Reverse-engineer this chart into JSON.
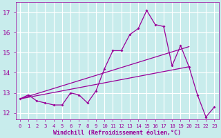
{
  "bg_color": "#c8ecec",
  "grid_color": "#ffffff",
  "line_color": "#990099",
  "xlabel": "Windchill (Refroidissement éolien,°C)",
  "xlim": [
    -0.5,
    23.5
  ],
  "ylim": [
    11.7,
    17.5
  ],
  "yticks": [
    12,
    13,
    14,
    15,
    16,
    17
  ],
  "xticks": [
    0,
    1,
    2,
    3,
    4,
    5,
    6,
    7,
    8,
    9,
    10,
    11,
    12,
    13,
    14,
    15,
    16,
    17,
    18,
    19,
    20,
    21,
    22,
    23
  ],
  "series1_x": [
    0,
    1,
    2,
    3,
    4,
    5,
    6,
    7,
    8,
    9,
    10,
    11,
    12,
    13,
    14,
    15,
    16,
    17,
    18,
    19,
    20,
    21,
    22,
    23
  ],
  "series1_y": [
    12.7,
    12.9,
    12.6,
    12.5,
    12.4,
    12.4,
    13.0,
    12.9,
    12.5,
    13.1,
    14.2,
    15.1,
    15.1,
    15.9,
    16.2,
    17.1,
    16.4,
    16.3,
    14.35,
    15.35,
    14.3,
    12.9,
    11.8,
    12.3
  ],
  "series2_x": [
    0,
    20
  ],
  "series2_y": [
    12.7,
    15.3
  ],
  "series3_x": [
    0,
    20
  ],
  "series3_y": [
    12.7,
    14.3
  ]
}
